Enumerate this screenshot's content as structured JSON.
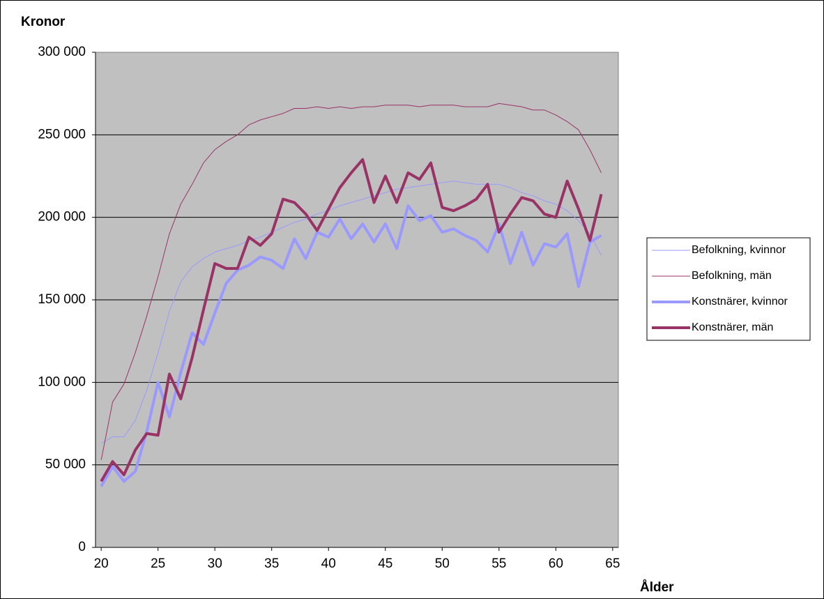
{
  "chart_data": {
    "type": "line",
    "y_label": "Kronor",
    "x_label": "Ålder",
    "x": [
      20,
      21,
      22,
      23,
      24,
      25,
      26,
      27,
      28,
      29,
      30,
      31,
      32,
      33,
      34,
      35,
      36,
      37,
      38,
      39,
      40,
      41,
      42,
      43,
      44,
      45,
      46,
      47,
      48,
      49,
      50,
      51,
      52,
      53,
      54,
      55,
      56,
      57,
      58,
      59,
      60,
      61,
      62,
      63,
      64
    ],
    "xlim": [
      19.5,
      65.5
    ],
    "xticks": [
      20,
      25,
      30,
      35,
      40,
      45,
      50,
      55,
      60,
      65
    ],
    "ylim": [
      0,
      300000
    ],
    "yticks": [
      0,
      {
        "value": 50000,
        "label": "50 000"
      },
      {
        "value": 100000,
        "label": "100 000"
      },
      {
        "value": 150000,
        "label": "150 000"
      },
      {
        "value": 200000,
        "label": "200 000"
      },
      {
        "value": 250000,
        "label": "250 000"
      },
      {
        "value": 300000,
        "label": "300 000"
      }
    ],
    "grid": true,
    "legend": "right",
    "series": [
      {
        "name": "Befolkning, kvinnor",
        "color": "#9999ff",
        "width": 1,
        "values": [
          63000,
          67000,
          67000,
          77000,
          95000,
          118000,
          143000,
          161000,
          170000,
          175000,
          179000,
          181000,
          183000,
          186000,
          188000,
          191000,
          194000,
          197000,
          199000,
          202000,
          204000,
          207000,
          209000,
          211000,
          213000,
          215000,
          217000,
          218000,
          219000,
          220000,
          221000,
          222000,
          221000,
          220000,
          220000,
          220000,
          218000,
          215000,
          213000,
          210000,
          208000,
          204000,
          198000,
          190000,
          177000
        ]
      },
      {
        "name": "Befolkning, män",
        "color": "#993366",
        "width": 1,
        "values": [
          53000,
          88000,
          99000,
          118000,
          140000,
          164000,
          190000,
          208000,
          220000,
          233000,
          241000,
          246000,
          250000,
          256000,
          259000,
          261000,
          263000,
          266000,
          266000,
          267000,
          266000,
          267000,
          266000,
          267000,
          267000,
          268000,
          268000,
          268000,
          267000,
          268000,
          268000,
          268000,
          267000,
          267000,
          267000,
          269000,
          268000,
          267000,
          265000,
          265000,
          262000,
          258000,
          253000,
          241000,
          227000
        ]
      },
      {
        "name": "Konstnärer, kvinnor",
        "color": "#9999ff",
        "width": 4,
        "values": [
          37000,
          49000,
          40000,
          46000,
          70000,
          100000,
          79000,
          106000,
          130000,
          123000,
          142000,
          160000,
          168000,
          171000,
          176000,
          174000,
          169000,
          187000,
          175000,
          191000,
          188000,
          199000,
          187000,
          196000,
          185000,
          196000,
          181000,
          207000,
          198000,
          201000,
          191000,
          193000,
          189000,
          186000,
          179000,
          196000,
          172000,
          191000,
          171000,
          184000,
          182000,
          190000,
          158000,
          185000,
          189000
        ]
      },
      {
        "name": "Konstnärer, män",
        "color": "#993366",
        "width": 4,
        "values": [
          40000,
          52000,
          44000,
          59000,
          69000,
          68000,
          105000,
          90000,
          115000,
          144000,
          172000,
          169000,
          169000,
          188000,
          183000,
          190000,
          211000,
          209000,
          202000,
          192000,
          205000,
          218000,
          227000,
          235000,
          209000,
          225000,
          209000,
          227000,
          223000,
          233000,
          206000,
          204000,
          207000,
          211000,
          220000,
          191000,
          202000,
          212000,
          210000,
          202000,
          200000,
          222000,
          205000,
          186000,
          214000
        ]
      }
    ]
  }
}
